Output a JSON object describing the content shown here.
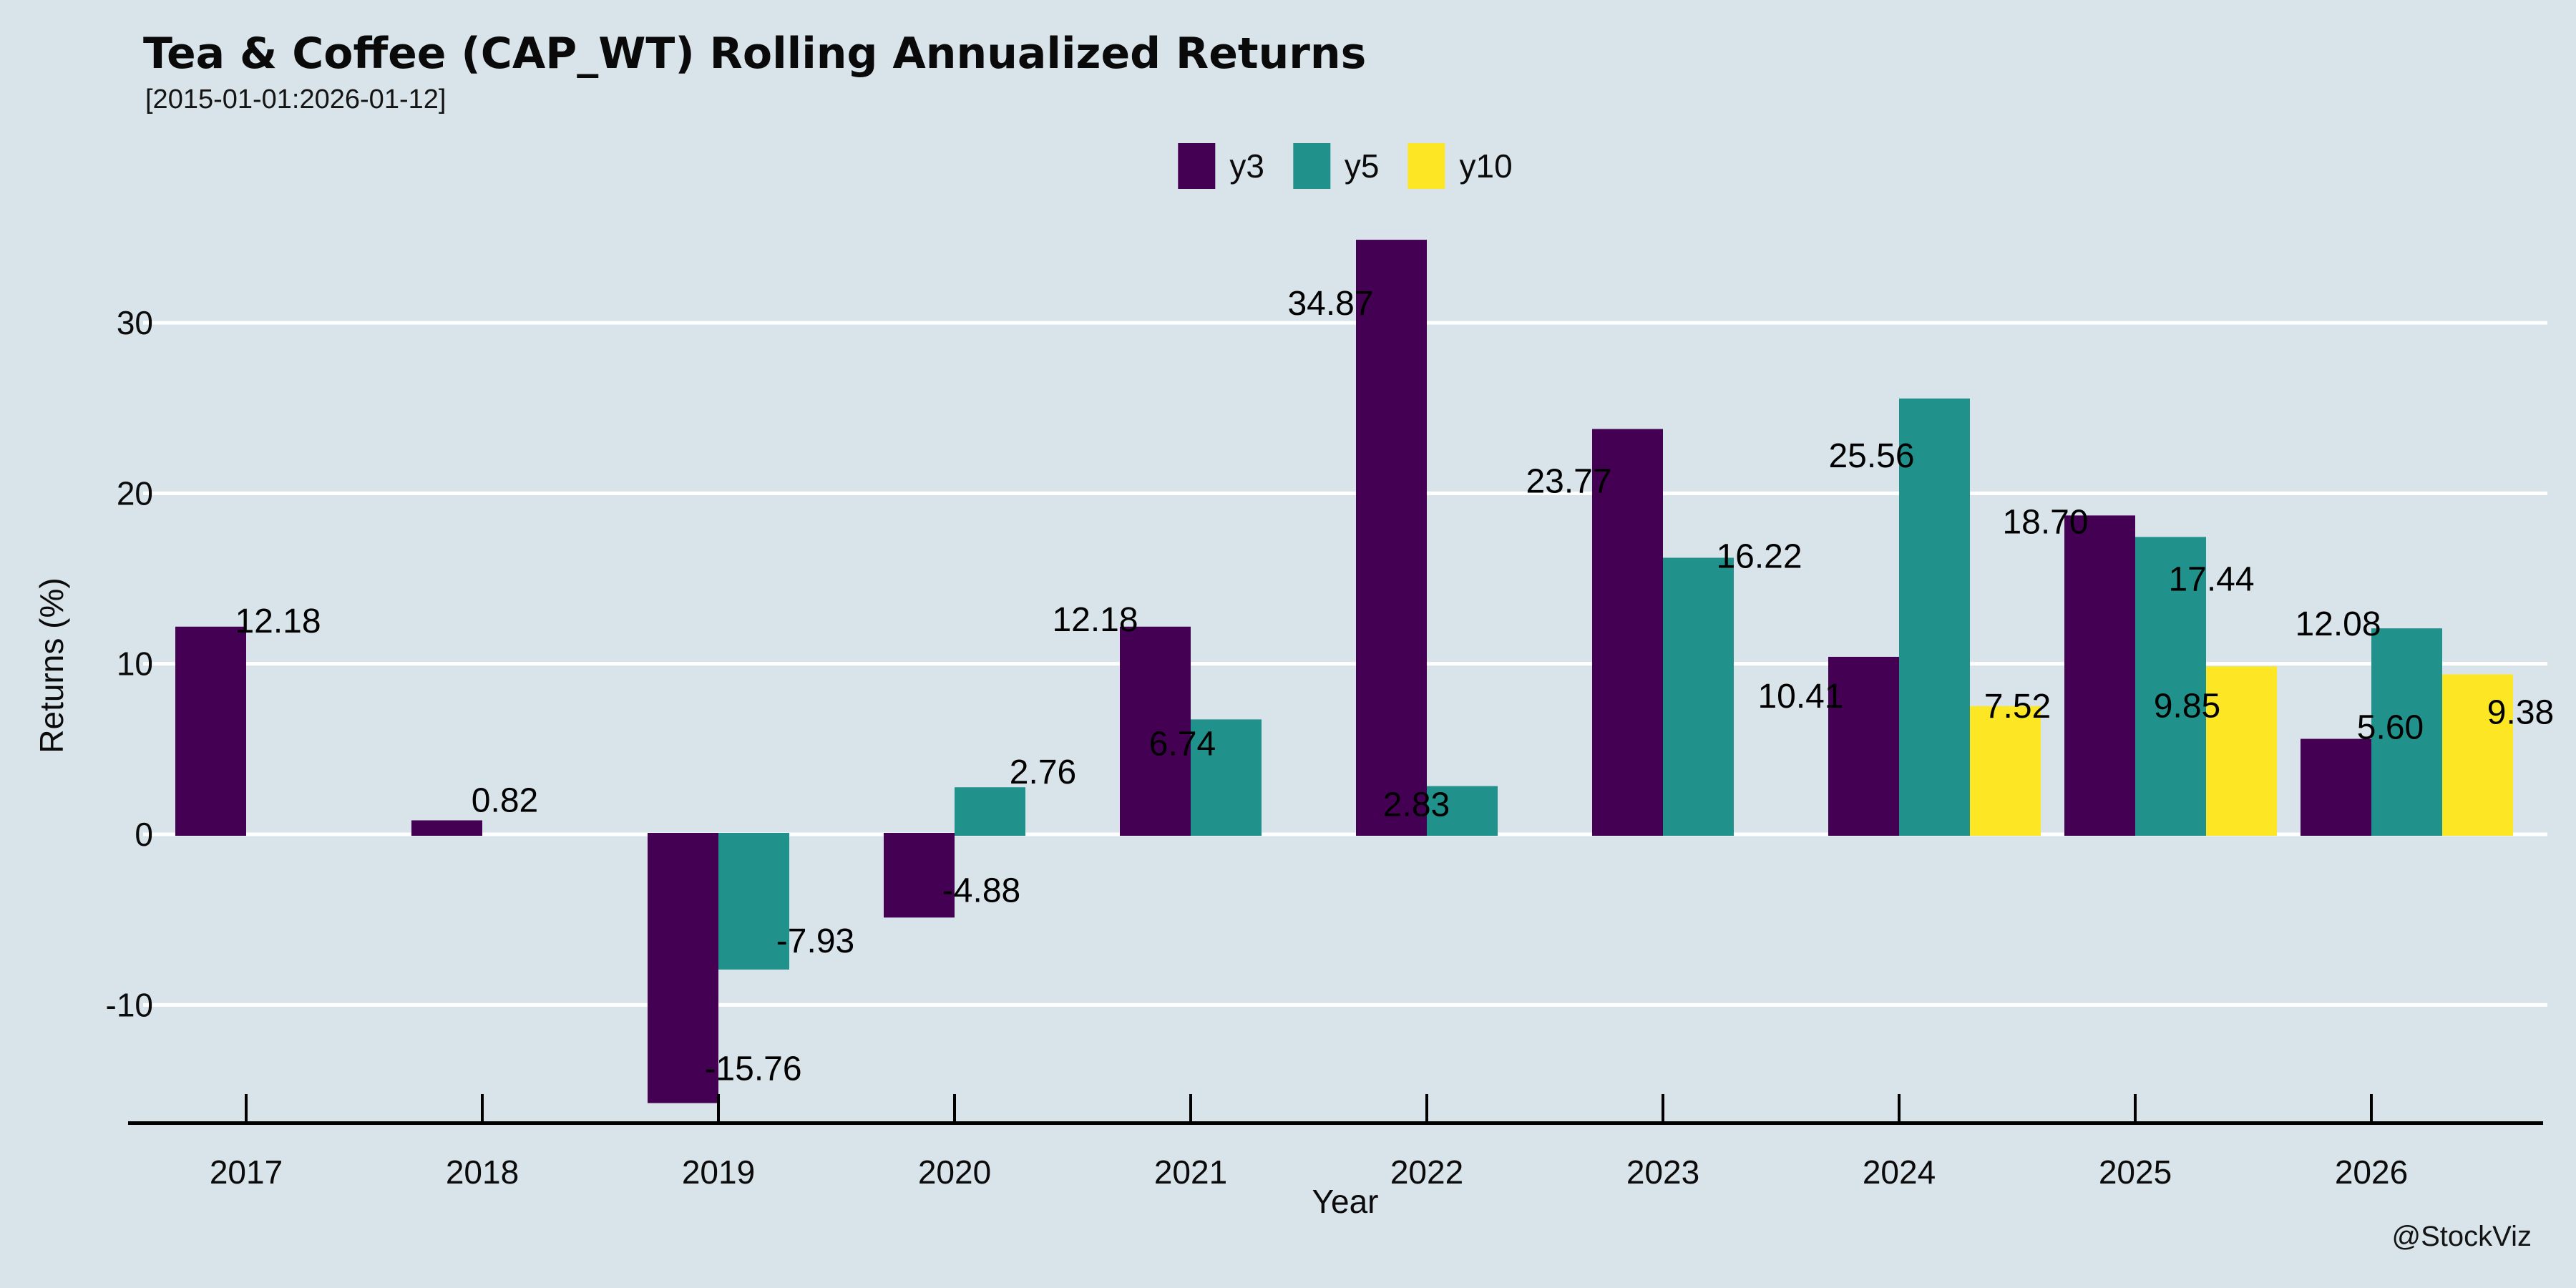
{
  "title": "Tea & Coffee (CAP_WT) Rolling Annualized Returns",
  "subtitle": "[2015-01-01:2026-01-12]",
  "watermark": "@StockViz",
  "chart_data": {
    "type": "bar",
    "title": "Tea & Coffee (CAP_WT) Rolling Annualized Returns",
    "subtitle": "[2015-01-01:2026-01-12]",
    "xlabel": "Year",
    "ylabel": "Returns (%)",
    "categories": [
      2017,
      2018,
      2019,
      2020,
      2021,
      2022,
      2023,
      2024,
      2025,
      2026
    ],
    "series": [
      {
        "name": "y3",
        "color": "#440154",
        "values": [
          12.18,
          0.82,
          -15.76,
          -4.88,
          12.18,
          34.87,
          23.77,
          10.41,
          18.7,
          5.6
        ]
      },
      {
        "name": "y5",
        "color": "#21918c",
        "values": [
          null,
          null,
          -7.93,
          2.76,
          6.74,
          2.83,
          16.22,
          25.56,
          17.44,
          12.08
        ]
      },
      {
        "name": "y10",
        "color": "#fde725",
        "values": [
          null,
          null,
          null,
          null,
          null,
          null,
          null,
          7.52,
          9.85,
          9.38
        ]
      }
    ],
    "yticks": [
      30,
      20,
      10,
      0,
      -10
    ],
    "ylim": [
      -16.9,
      36.3
    ],
    "grid": true,
    "gridline_color": "#ffffff",
    "background": "#d8e3ea",
    "legend_position": "top-center",
    "bar_value_labels": true,
    "value_label_format": "2-decimals"
  }
}
